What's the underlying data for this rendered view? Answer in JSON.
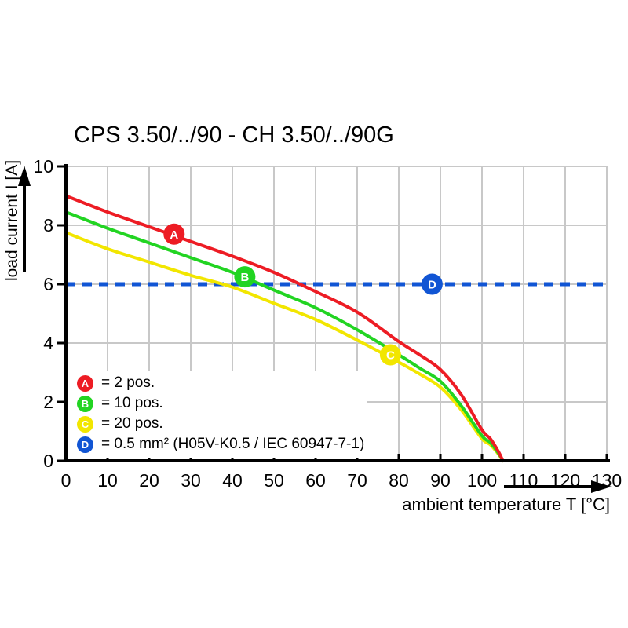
{
  "chart_data": {
    "type": "line",
    "title": "CPS 3.50/../90 - CH 3.50/../90G",
    "xlabel": "ambient temperature T [°C]",
    "ylabel": "load current I [A]",
    "xlim": [
      0,
      130
    ],
    "ylim": [
      0,
      10
    ],
    "x_ticks": [
      0,
      10,
      20,
      30,
      40,
      50,
      60,
      70,
      80,
      90,
      100,
      110,
      120,
      130
    ],
    "y_ticks": [
      0,
      2,
      4,
      6,
      8,
      10
    ],
    "grid": true,
    "colors": {
      "grid": "#c8c8c8",
      "axis": "#000000",
      "background": "#ffffff"
    },
    "series": [
      {
        "id": "A",
        "name": "2 pos.",
        "color": "#ed1c24",
        "style": "solid",
        "marker": [
          26,
          7.7
        ],
        "points": [
          [
            0,
            9.0
          ],
          [
            10,
            8.45
          ],
          [
            20,
            7.95
          ],
          [
            30,
            7.45
          ],
          [
            40,
            6.95
          ],
          [
            50,
            6.4
          ],
          [
            60,
            5.75
          ],
          [
            70,
            5.05
          ],
          [
            80,
            4.05
          ],
          [
            85,
            3.6
          ],
          [
            90,
            3.1
          ],
          [
            95,
            2.25
          ],
          [
            100,
            1.05
          ],
          [
            102,
            0.75
          ],
          [
            104,
            0.3
          ],
          [
            105,
            0
          ]
        ]
      },
      {
        "id": "B",
        "name": "10 pos.",
        "color": "#22d422",
        "style": "solid",
        "marker": [
          43,
          6.25
        ],
        "points": [
          [
            0,
            8.45
          ],
          [
            10,
            7.9
          ],
          [
            20,
            7.4
          ],
          [
            30,
            6.9
          ],
          [
            40,
            6.4
          ],
          [
            50,
            5.8
          ],
          [
            60,
            5.2
          ],
          [
            70,
            4.45
          ],
          [
            80,
            3.6
          ],
          [
            85,
            3.15
          ],
          [
            90,
            2.7
          ],
          [
            95,
            1.87
          ],
          [
            100,
            0.85
          ],
          [
            102,
            0.62
          ],
          [
            104,
            0.25
          ],
          [
            105,
            0
          ]
        ]
      },
      {
        "id": "C",
        "name": "20 pos.",
        "color": "#f2e600",
        "style": "solid",
        "marker": [
          78,
          3.6
        ],
        "points": [
          [
            0,
            7.75
          ],
          [
            10,
            7.2
          ],
          [
            20,
            6.75
          ],
          [
            30,
            6.3
          ],
          [
            40,
            5.9
          ],
          [
            50,
            5.35
          ],
          [
            60,
            4.8
          ],
          [
            70,
            4.1
          ],
          [
            80,
            3.35
          ],
          [
            85,
            2.95
          ],
          [
            90,
            2.5
          ],
          [
            95,
            1.73
          ],
          [
            100,
            0.75
          ],
          [
            102,
            0.55
          ],
          [
            104,
            0.22
          ],
          [
            105,
            0
          ]
        ]
      },
      {
        "id": "D",
        "name": "0.5 mm² (H05V-K0.5 / IEC 60947-7-1)",
        "color": "#1155d4",
        "style": "dashed",
        "marker": [
          88,
          6
        ],
        "points": [
          [
            0,
            6
          ],
          [
            130,
            6
          ]
        ]
      }
    ],
    "legend": {
      "position": "bottom-left",
      "items": [
        {
          "id": "A",
          "label": "= 2 pos."
        },
        {
          "id": "B",
          "label": "= 10 pos."
        },
        {
          "id": "C",
          "label": "= 20 pos."
        },
        {
          "id": "D",
          "label": "= 0.5 mm² (H05V-K0.5 / IEC 60947-7-1)"
        }
      ]
    }
  }
}
